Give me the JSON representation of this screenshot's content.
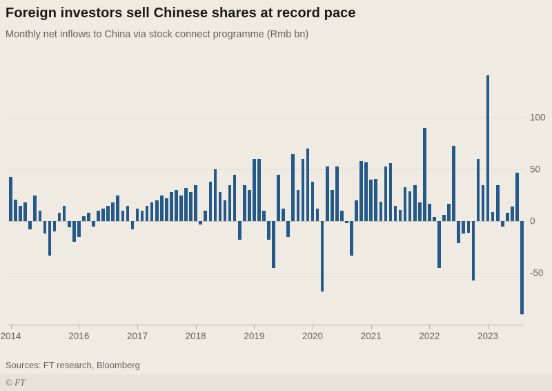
{
  "header": {
    "title": "Foreign investors sell Chinese shares at record pace",
    "subtitle": "Monthly net inflows to China via stock connect programme (Rmb bn)"
  },
  "footer": {
    "sources": "Sources: FT research, Bloomberg",
    "copyright": "© FT"
  },
  "colors": {
    "background": "#f0ebe2",
    "bar": "#24598a",
    "title_text": "#1a1817",
    "secondary_text": "#66605c"
  },
  "chart_data": {
    "type": "bar",
    "title": "Foreign investors sell Chinese shares at record pace",
    "subtitle": "Monthly net inflows to China via stock connect programme (Rmb bn)",
    "unit": "Rmb bn",
    "frequency": "monthly",
    "start_month": "2014-11",
    "ylim": [
      -100,
      150
    ],
    "y_ticks": [
      100,
      50,
      0,
      -50
    ],
    "x_ticks": [
      {
        "label": "2014",
        "index": 0
      },
      {
        "label": "2016",
        "index": 14
      },
      {
        "label": "2017",
        "index": 26
      },
      {
        "label": "2018",
        "index": 38
      },
      {
        "label": "2019",
        "index": 50
      },
      {
        "label": "2020",
        "index": 62
      },
      {
        "label": "2021",
        "index": 74
      },
      {
        "label": "2022",
        "index": 86
      },
      {
        "label": "2023",
        "index": 98
      }
    ],
    "bar_color": "#24598a",
    "grid": "horizontal-faint",
    "legend": "none",
    "y_axis_position": "right",
    "values": [
      43,
      21,
      15,
      18,
      -8,
      25,
      10,
      -12,
      -33,
      -10,
      8,
      15,
      -6,
      -20,
      -15,
      5,
      8,
      -5,
      10,
      12,
      15,
      18,
      25,
      10,
      15,
      -8,
      12,
      10,
      15,
      18,
      20,
      25,
      22,
      28,
      30,
      25,
      32,
      28,
      35,
      -3,
      10,
      38,
      50,
      28,
      20,
      35,
      45,
      -18,
      35,
      30,
      60,
      60,
      10,
      -18,
      -45,
      45,
      12,
      -15,
      65,
      30,
      60,
      70,
      38,
      12,
      -68,
      53,
      30,
      53,
      10,
      -2,
      -33,
      20,
      58,
      57,
      40,
      41,
      19,
      53,
      56,
      15,
      11,
      33,
      29,
      35,
      18,
      90,
      17,
      4,
      -45,
      6,
      17,
      73,
      -21,
      -12,
      -11,
      -57,
      60,
      35,
      141,
      9,
      35,
      -5,
      8,
      14,
      47,
      -90
    ]
  }
}
